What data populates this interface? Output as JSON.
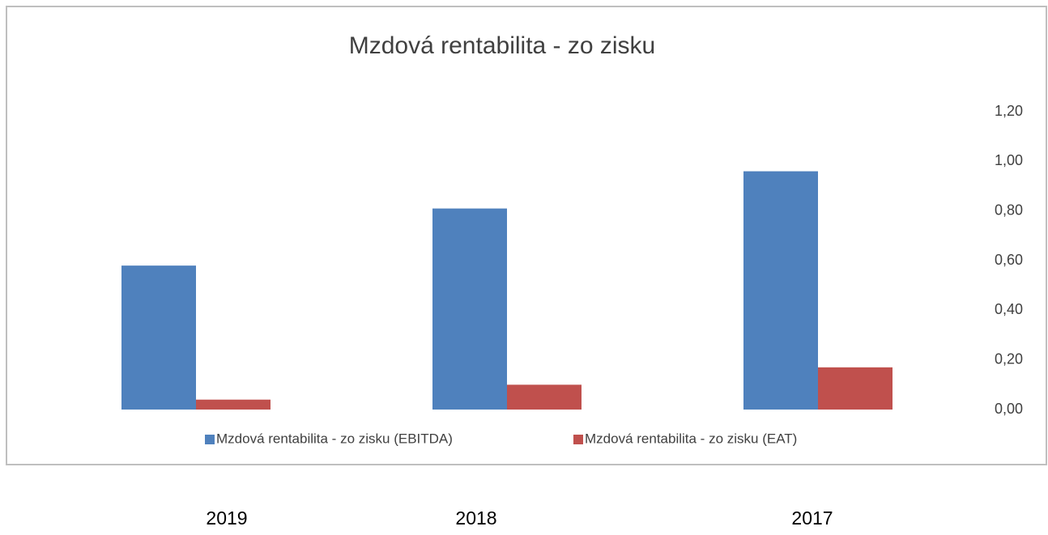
{
  "chart_data": {
    "type": "bar",
    "title": "Mzdová rentabilita - zo zisku",
    "categories": [
      "2019",
      "2018",
      "2017"
    ],
    "series": [
      {
        "name": "Mzdová rentabilita - zo zisku (EBITDA)",
        "color": "#4f81bd",
        "values": [
          0.58,
          0.81,
          0.96
        ]
      },
      {
        "name": "Mzdová rentabilita - zo zisku (EAT)",
        "color": "#c0504d",
        "values": [
          0.04,
          0.1,
          0.17
        ]
      }
    ],
    "ylim": [
      0,
      1.2
    ],
    "yticks": [
      {
        "value": 0,
        "label": "0,00"
      },
      {
        "value": 0.2,
        "label": "0,20"
      },
      {
        "value": 0.4,
        "label": "0,40"
      },
      {
        "value": 0.6,
        "label": "0,60"
      },
      {
        "value": 0.8,
        "label": "0,80"
      },
      {
        "value": 1.0,
        "label": "1,00"
      },
      {
        "value": 1.2,
        "label": "1,20"
      }
    ],
    "grid": false,
    "y_axis_side": "right",
    "legend": "bottom"
  }
}
